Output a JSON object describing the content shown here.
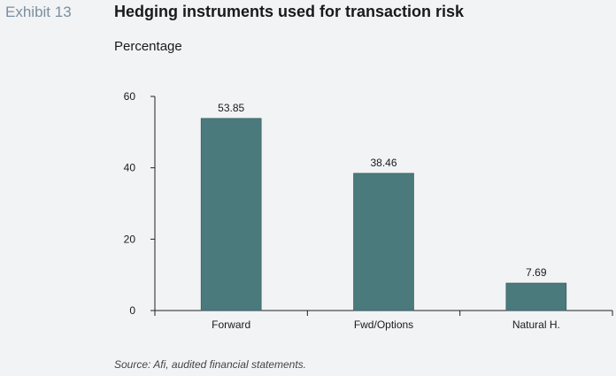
{
  "header": {
    "exhibit": "Exhibit 13",
    "title": "Hedging instruments used for transaction risk",
    "subtitle": "Percentage"
  },
  "footer": {
    "source": "Source: Afi, audited financial statements."
  },
  "colors": {
    "bar": "#4a7a7c",
    "bar_stroke": "#2f5557",
    "axis": "#222222",
    "exhibit_text": "#7a8fa0"
  },
  "chart_data": {
    "type": "bar",
    "title": "Hedging instruments used for transaction risk",
    "ylabel": "Percentage",
    "xlabel": "",
    "categories": [
      "Forward",
      "Fwd/Options",
      "Natural H."
    ],
    "values": [
      53.85,
      38.46,
      7.69
    ],
    "data_labels": [
      "53.85",
      "38.46",
      "7.69"
    ],
    "ylim": [
      0,
      60
    ],
    "yticks": [
      0,
      20,
      40,
      60
    ],
    "grid": false,
    "legend": "none"
  }
}
